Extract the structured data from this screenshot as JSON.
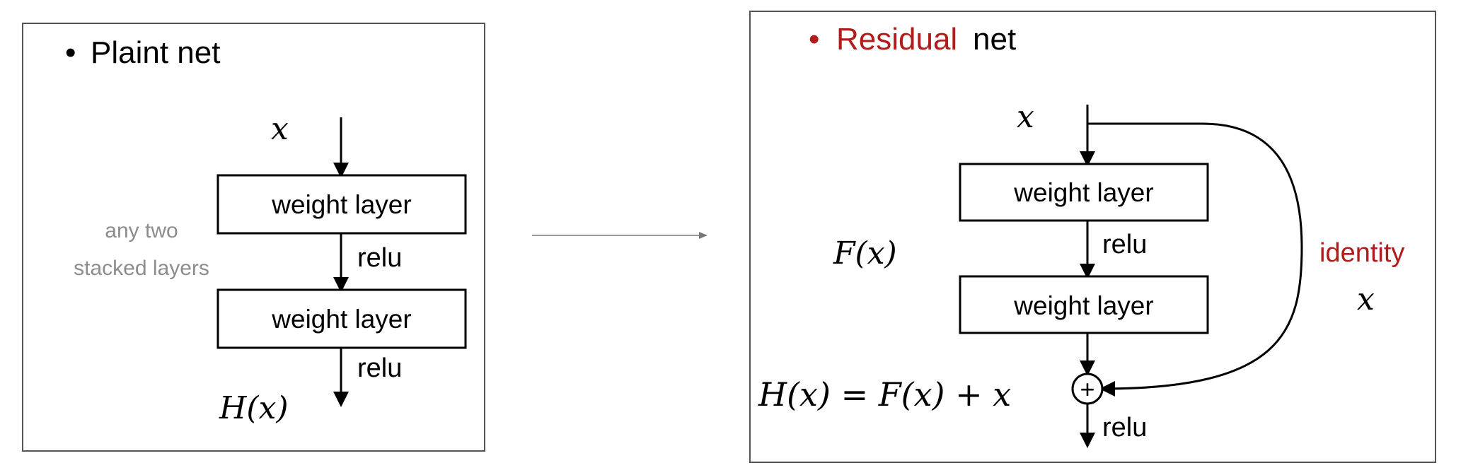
{
  "plain": {
    "title_bullet": "•",
    "title": "Plaint net",
    "input": "x",
    "layer1": "weight layer",
    "layer2": "weight layer",
    "act1": "relu",
    "act2": "relu",
    "output": "H(x)",
    "note_line1": "any two",
    "note_line2": "stacked layers"
  },
  "residual": {
    "title_bullet": "•",
    "title_highlight": "Residual",
    "title_rest": "net",
    "input": "x",
    "layer1": "weight layer",
    "layer2": "weight layer",
    "act1": "relu",
    "act_out": "relu",
    "fx": "F(x)",
    "identity": "identity",
    "identity_x": "x",
    "equation": "H(x) = F(x) + x",
    "plus": "+"
  },
  "colors": {
    "highlight": "#b01c1c",
    "note_gray": "#8c8c8c",
    "stroke": "#000000",
    "panel_border": "#555555",
    "connector": "#777777"
  }
}
